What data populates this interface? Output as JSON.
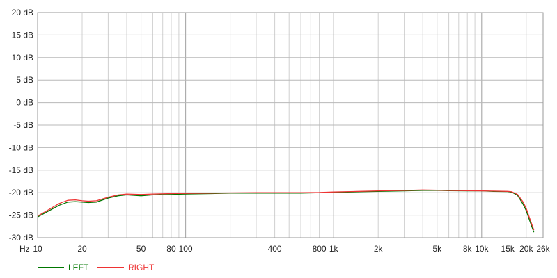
{
  "chart_data": {
    "type": "line",
    "title": "",
    "xlabel": "Hz",
    "ylabel": "",
    "x_scale": "log",
    "xlim": [
      10,
      26000
    ],
    "ylim": [
      -30,
      20
    ],
    "grid": true,
    "legend_placement": "bottom-left",
    "y_ticks": [
      {
        "value": 20,
        "label": "20 dB"
      },
      {
        "value": 15,
        "label": "15 dB"
      },
      {
        "value": 10,
        "label": "10 dB"
      },
      {
        "value": 5,
        "label": "5 dB"
      },
      {
        "value": 0,
        "label": "0 dB"
      },
      {
        "value": -5,
        "label": "-5 dB"
      },
      {
        "value": -10,
        "label": "-10 dB"
      },
      {
        "value": -15,
        "label": "-15 dB"
      },
      {
        "value": -20,
        "label": "-20 dB"
      },
      {
        "value": -25,
        "label": "-25 dB"
      },
      {
        "value": -30,
        "label": "-30 dB"
      }
    ],
    "x_ticks": [
      {
        "value": 10,
        "label": "10"
      },
      {
        "value": 20,
        "label": "20"
      },
      {
        "value": 50,
        "label": "50"
      },
      {
        "value": 80,
        "label": "80"
      },
      {
        "value": 100,
        "label": "100"
      },
      {
        "value": 400,
        "label": "400"
      },
      {
        "value": 800,
        "label": "800"
      },
      {
        "value": 1000,
        "label": "1k"
      },
      {
        "value": 2000,
        "label": "2k"
      },
      {
        "value": 5000,
        "label": "5k"
      },
      {
        "value": 8000,
        "label": "8k"
      },
      {
        "value": 10000,
        "label": "10k"
      },
      {
        "value": 15000,
        "label": "15k"
      },
      {
        "value": 20000,
        "label": "20k"
      },
      {
        "value": 26000,
        "label": "26k"
      }
    ],
    "series": [
      {
        "name": "LEFT",
        "color": "#007700",
        "points": [
          [
            10,
            -25.4
          ],
          [
            12,
            -24.0
          ],
          [
            14,
            -22.8
          ],
          [
            16,
            -22.1
          ],
          [
            18,
            -22.0
          ],
          [
            20,
            -22.1
          ],
          [
            22,
            -22.2
          ],
          [
            25,
            -22.1
          ],
          [
            30,
            -21.2
          ],
          [
            35,
            -20.7
          ],
          [
            40,
            -20.5
          ],
          [
            50,
            -20.7
          ],
          [
            60,
            -20.5
          ],
          [
            80,
            -20.4
          ],
          [
            100,
            -20.3
          ],
          [
            150,
            -20.2
          ],
          [
            200,
            -20.1
          ],
          [
            300,
            -20.1
          ],
          [
            400,
            -20.1
          ],
          [
            600,
            -20.1
          ],
          [
            800,
            -20.0
          ],
          [
            1000,
            -19.95
          ],
          [
            1500,
            -19.8
          ],
          [
            2000,
            -19.7
          ],
          [
            3000,
            -19.6
          ],
          [
            4000,
            -19.5
          ],
          [
            5000,
            -19.5
          ],
          [
            6000,
            -19.55
          ],
          [
            8000,
            -19.6
          ],
          [
            10000,
            -19.6
          ],
          [
            12000,
            -19.7
          ],
          [
            15000,
            -19.75
          ],
          [
            16000,
            -19.9
          ],
          [
            17500,
            -20.6
          ],
          [
            19000,
            -22.5
          ],
          [
            20000,
            -24.0
          ],
          [
            21000,
            -26.0
          ],
          [
            22500,
            -28.8
          ]
        ]
      },
      {
        "name": "RIGHT",
        "color": "#ee3333",
        "points": [
          [
            10,
            -25.2
          ],
          [
            12,
            -23.7
          ],
          [
            14,
            -22.4
          ],
          [
            16,
            -21.7
          ],
          [
            18,
            -21.6
          ],
          [
            20,
            -21.8
          ],
          [
            22,
            -21.9
          ],
          [
            25,
            -21.8
          ],
          [
            30,
            -21.0
          ],
          [
            35,
            -20.5
          ],
          [
            40,
            -20.3
          ],
          [
            50,
            -20.4
          ],
          [
            60,
            -20.3
          ],
          [
            80,
            -20.2
          ],
          [
            100,
            -20.15
          ],
          [
            150,
            -20.1
          ],
          [
            200,
            -20.05
          ],
          [
            300,
            -20.0
          ],
          [
            400,
            -20.0
          ],
          [
            600,
            -20.0
          ],
          [
            800,
            -19.95
          ],
          [
            1000,
            -19.85
          ],
          [
            1500,
            -19.7
          ],
          [
            2000,
            -19.6
          ],
          [
            3000,
            -19.5
          ],
          [
            4000,
            -19.4
          ],
          [
            5000,
            -19.45
          ],
          [
            6000,
            -19.5
          ],
          [
            8000,
            -19.55
          ],
          [
            10000,
            -19.6
          ],
          [
            12000,
            -19.65
          ],
          [
            15000,
            -19.7
          ],
          [
            16000,
            -19.8
          ],
          [
            17500,
            -20.4
          ],
          [
            19000,
            -22.0
          ],
          [
            20000,
            -23.5
          ],
          [
            21000,
            -25.5
          ],
          [
            22500,
            -28.3
          ]
        ]
      }
    ]
  }
}
